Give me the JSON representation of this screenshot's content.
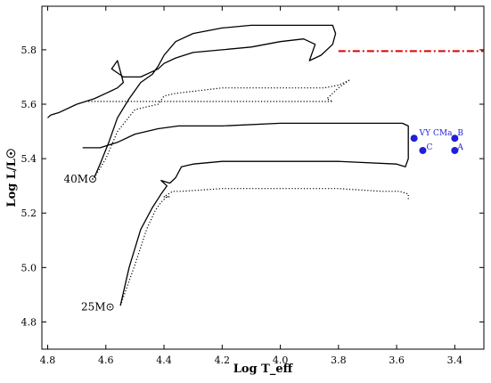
{
  "chart_data": {
    "type": "line",
    "title": "",
    "xlabel": "Log T_eff",
    "ylabel": "Log L/L☉",
    "xlim": [
      4.82,
      3.3
    ],
    "ylim": [
      4.7,
      5.96
    ],
    "x_ticks": [
      "4.8",
      "4.6",
      "4.4",
      "4.2",
      "4.0",
      "3.8",
      "3.6",
      "3.4"
    ],
    "y_ticks": [
      "4.8",
      "5.0",
      "5.2",
      "5.4",
      "5.6",
      "5.8"
    ],
    "grid": false,
    "annotations": [
      {
        "text": "40M",
        "x": 4.63,
        "y": 5.325
      },
      {
        "text": "25M",
        "x": 4.57,
        "y": 4.855
      }
    ],
    "series": [
      {
        "style": "solid",
        "color": "#000000",
        "x": [
          4.64,
          4.62,
          4.59,
          4.56,
          4.52,
          4.48,
          4.44,
          4.42,
          4.4,
          4.36,
          4.3,
          4.2,
          4.1,
          4.0,
          3.9,
          3.82,
          3.81,
          3.82,
          3.86,
          3.9,
          3.88,
          3.92,
          4.0,
          4.1,
          4.2,
          4.3,
          4.36,
          4.4,
          4.42,
          4.44,
          4.48,
          4.54,
          4.58,
          4.56,
          4.54,
          4.56,
          4.6,
          4.64,
          4.7,
          4.76,
          4.79,
          4.8
        ],
        "y": [
          5.33,
          5.38,
          5.46,
          5.55,
          5.62,
          5.68,
          5.71,
          5.74,
          5.78,
          5.83,
          5.86,
          5.88,
          5.89,
          5.89,
          5.89,
          5.89,
          5.86,
          5.82,
          5.78,
          5.76,
          5.82,
          5.84,
          5.83,
          5.81,
          5.8,
          5.79,
          5.77,
          5.75,
          5.73,
          5.72,
          5.7,
          5.7,
          5.73,
          5.76,
          5.68,
          5.66,
          5.64,
          5.62,
          5.6,
          5.57,
          5.56,
          5.55
        ]
      },
      {
        "style": "dotted",
        "color": "#000000",
        "x": [
          4.64,
          4.6,
          4.56,
          4.5,
          4.42,
          4.4,
          4.36,
          4.2,
          4.0,
          3.85,
          3.8,
          3.78,
          3.76,
          3.8,
          3.84,
          3.82,
          4.0,
          4.3,
          4.5,
          4.66
        ],
        "y": [
          5.33,
          5.4,
          5.5,
          5.58,
          5.6,
          5.63,
          5.64,
          5.66,
          5.66,
          5.66,
          5.67,
          5.68,
          5.69,
          5.66,
          5.62,
          5.61,
          5.61,
          5.61,
          5.61,
          5.61
        ]
      },
      {
        "style": "solid",
        "color": "#000000",
        "x": [
          4.55,
          4.52,
          4.48,
          4.44,
          4.41,
          4.39,
          4.41,
          4.38,
          4.36,
          4.34,
          4.3,
          4.2,
          4.0,
          3.8,
          3.6,
          3.57,
          3.56,
          3.56,
          3.56,
          3.58,
          3.62,
          3.8,
          4.0,
          4.2,
          4.35,
          4.42,
          4.5,
          4.56,
          4.62,
          4.68
        ],
        "y": [
          4.86,
          5.0,
          5.14,
          5.22,
          5.27,
          5.3,
          5.32,
          5.31,
          5.33,
          5.37,
          5.38,
          5.39,
          5.39,
          5.39,
          5.38,
          5.37,
          5.4,
          5.46,
          5.52,
          5.53,
          5.53,
          5.53,
          5.53,
          5.52,
          5.52,
          5.51,
          5.49,
          5.46,
          5.44,
          5.44
        ]
      },
      {
        "style": "dotted",
        "color": "#000000",
        "x": [
          4.55,
          4.5,
          4.46,
          4.43,
          4.41,
          4.39,
          4.38,
          4.4,
          4.37,
          4.34,
          4.2,
          4.0,
          3.8,
          3.65,
          3.59,
          3.56,
          3.56
        ],
        "y": [
          4.86,
          5.01,
          5.14,
          5.21,
          5.24,
          5.26,
          5.26,
          5.26,
          5.28,
          5.28,
          5.29,
          5.29,
          5.29,
          5.28,
          5.28,
          5.27,
          5.25
        ]
      },
      {
        "style": "dashdot",
        "color": "#dd0000",
        "x": [
          3.8,
          3.3
        ],
        "y": [
          5.795,
          5.795
        ]
      }
    ],
    "points": {
      "color": "#1f1fd6",
      "items": [
        {
          "label": "VY CMa",
          "x": 3.54,
          "y": 5.475
        },
        {
          "label": "C",
          "x": 3.51,
          "y": 5.43
        },
        {
          "label": "B",
          "x": 3.4,
          "y": 5.475
        },
        {
          "label": "A",
          "x": 3.4,
          "y": 5.43
        }
      ]
    }
  }
}
